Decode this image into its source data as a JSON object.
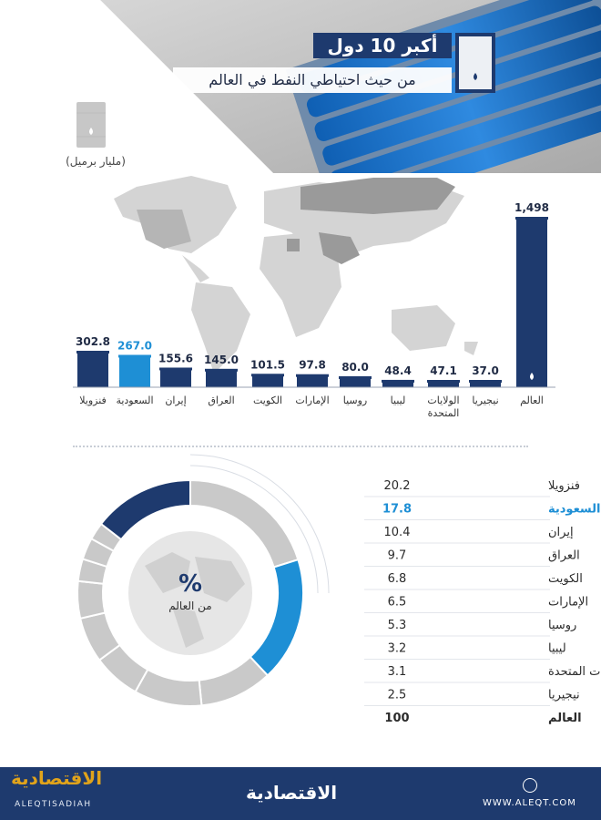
{
  "header": {
    "title": "أكبر 10 دول",
    "subtitle": "من حيث احتياطي النفط في العالم",
    "unit": "(مليار برميل)"
  },
  "colors": {
    "navy": "#1e3a6e",
    "highlight": "#1e8fd5",
    "grey": "#c9c9c9",
    "text": "#2b2b2b"
  },
  "chart_data": [
    {
      "type": "bar",
      "title": "",
      "unit": "(مليار برميل)",
      "categories": [
        "فنزويلا",
        "السعودية",
        "إيران",
        "العراق",
        "الكويت",
        "الإمارات",
        "روسيا",
        "ليبيا",
        "الولايات المتحدة",
        "نيجيريا",
        "العالم"
      ],
      "values": [
        302.8,
        267.0,
        155.6,
        145.0,
        101.5,
        97.8,
        80.0,
        48.4,
        47.1,
        37.0,
        1498
      ],
      "value_labels": [
        "302.8",
        "267.0",
        "155.6",
        "145.0",
        "101.5",
        "97.8",
        "80.0",
        "48.4",
        "47.1",
        "37.0",
        "1,498"
      ],
      "highlight": "السعودية"
    },
    {
      "type": "pie",
      "title": "",
      "center_label": "%",
      "center_sublabel": "من العالم",
      "categories": [
        "فنزويلا",
        "السعودية",
        "إيران",
        "العراق",
        "الكويت",
        "الإمارات",
        "روسيا",
        "ليبيا",
        "الولايات المتحدة",
        "نيجيريا",
        "العالم"
      ],
      "values": [
        20.2,
        17.8,
        10.4,
        9.7,
        6.8,
        6.5,
        5.3,
        3.2,
        3.1,
        2.5,
        100
      ],
      "value_labels": [
        "20.2",
        "17.8",
        "10.4",
        "9.7",
        "6.8",
        "6.5",
        "5.3",
        "3.2",
        "3.1",
        "2.5",
        "100"
      ],
      "highlight": "السعودية",
      "total_label": "العالم"
    }
  ],
  "footer": {
    "logo_left": "الاقتصادية",
    "logo_left_sub": "ALEQTISADIAH",
    "logo_center": "الاقتصادية",
    "url": "WWW.ALEQT.COM"
  }
}
